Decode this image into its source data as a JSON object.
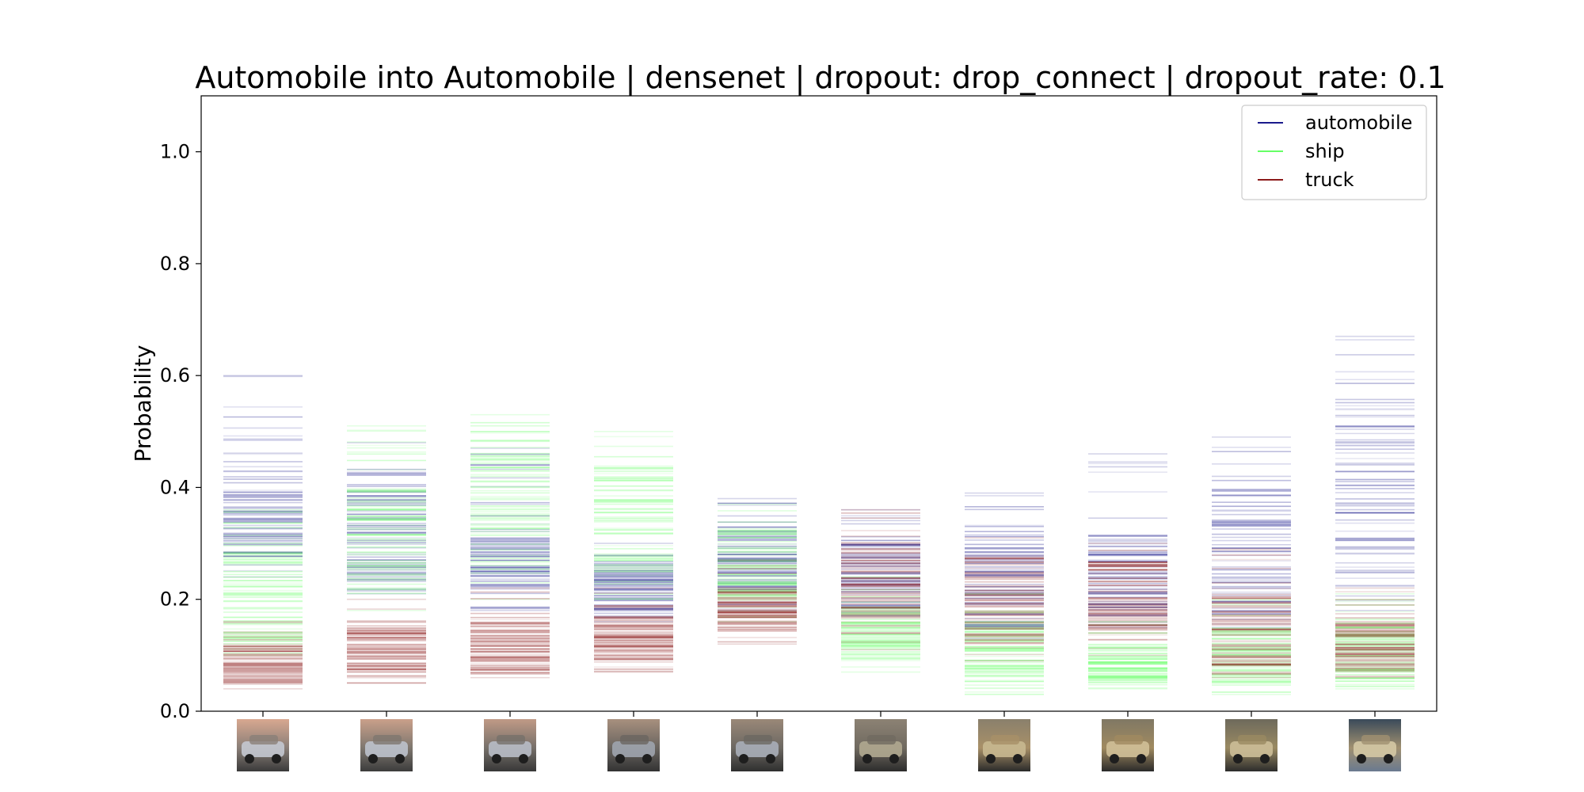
{
  "chart_data": {
    "type": "strip",
    "title": "Automobile into Automobile | densenet | dropout: drop_connect | dropout_rate: 0.1",
    "xlabel": "",
    "ylabel": "Probability",
    "ylim": [
      0,
      1.1
    ],
    "yticks": [
      "0.0",
      "0.2",
      "0.4",
      "0.6",
      "0.8",
      "1.0"
    ],
    "ytick_values": [
      0,
      0.2,
      0.4,
      0.6,
      0.8,
      1.0
    ],
    "grid": false,
    "legend_position": "top-right",
    "categories": [
      "1",
      "2",
      "3",
      "4",
      "5",
      "6",
      "7",
      "8",
      "9",
      "10"
    ],
    "x_ticks_are_images": true,
    "series": [
      {
        "name": "automobile",
        "color": "#1a1a8c",
        "ranges": [
          [
            0.24,
            0.6
          ],
          [
            0.21,
            0.48
          ],
          [
            0.18,
            0.47
          ],
          [
            0.16,
            0.3
          ],
          [
            0.18,
            0.38
          ],
          [
            0.17,
            0.36
          ],
          [
            0.13,
            0.39
          ],
          [
            0.15,
            0.46
          ],
          [
            0.15,
            0.49
          ],
          [
            0.18,
            0.67
          ]
        ],
        "dense_ranges": [
          [
            0.26,
            0.44
          ],
          [
            0.23,
            0.41
          ],
          [
            0.21,
            0.31
          ],
          [
            0.18,
            0.27
          ],
          [
            0.19,
            0.33
          ],
          [
            0.18,
            0.31
          ],
          [
            0.15,
            0.3
          ],
          [
            0.17,
            0.32
          ],
          [
            0.17,
            0.4
          ],
          [
            0.22,
            0.56
          ]
        ]
      },
      {
        "name": "ship",
        "color": "#66ff66",
        "ranges": [
          [
            0.1,
            0.36
          ],
          [
            0.18,
            0.51
          ],
          [
            0.2,
            0.53
          ],
          [
            0.2,
            0.5
          ],
          [
            0.16,
            0.37
          ],
          [
            0.07,
            0.24
          ],
          [
            0.03,
            0.21
          ],
          [
            0.04,
            0.16
          ],
          [
            0.03,
            0.2
          ],
          [
            0.04,
            0.21
          ]
        ],
        "dense_ranges": [
          [
            0.12,
            0.29
          ],
          [
            0.21,
            0.4
          ],
          [
            0.25,
            0.46
          ],
          [
            0.24,
            0.44
          ],
          [
            0.19,
            0.33
          ],
          [
            0.09,
            0.19
          ],
          [
            0.05,
            0.16
          ],
          [
            0.05,
            0.12
          ],
          [
            0.05,
            0.15
          ],
          [
            0.05,
            0.17
          ]
        ]
      },
      {
        "name": "truck",
        "color": "#8c1a1a",
        "ranges": [
          [
            0.04,
            0.16
          ],
          [
            0.05,
            0.2
          ],
          [
            0.06,
            0.22
          ],
          [
            0.07,
            0.22
          ],
          [
            0.12,
            0.27
          ],
          [
            0.11,
            0.36
          ],
          [
            0.09,
            0.31
          ],
          [
            0.1,
            0.3
          ],
          [
            0.06,
            0.29
          ],
          [
            0.06,
            0.22
          ]
        ],
        "dense_ranges": [
          [
            0.05,
            0.12
          ],
          [
            0.07,
            0.15
          ],
          [
            0.07,
            0.16
          ],
          [
            0.09,
            0.17
          ],
          [
            0.14,
            0.22
          ],
          [
            0.14,
            0.3
          ],
          [
            0.12,
            0.28
          ],
          [
            0.12,
            0.27
          ],
          [
            0.08,
            0.21
          ],
          [
            0.07,
            0.16
          ]
        ]
      }
    ]
  }
}
